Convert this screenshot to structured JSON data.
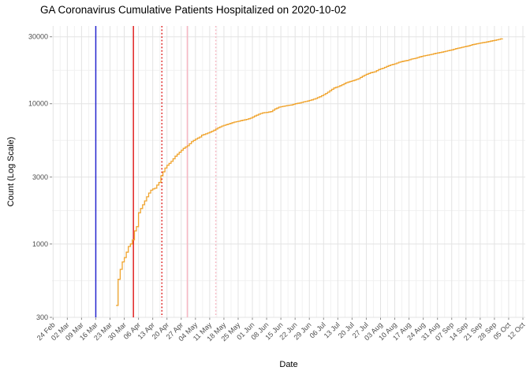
{
  "title": "GA Coronavirus Cumulative Patients Hospitalized on 2020-10-02",
  "chart_data": {
    "type": "line",
    "title": "GA Coronavirus Cumulative Patients Hospitalized on 2020-10-02",
    "xlabel": "Date",
    "ylabel": "Count (Log Scale)",
    "y_scale": "log10",
    "ylim": [
      300,
      35800
    ],
    "x_epoch": "2020-02-24",
    "x_tick_labels": [
      "24 Feb",
      "02 Mar",
      "09 Mar",
      "16 Mar",
      "23 Mar",
      "30 Mar",
      "06 Apr",
      "13 Apr",
      "20 Apr",
      "27 Apr",
      "04 May",
      "11 May",
      "18 May",
      "25 May",
      "01 Jun",
      "08 Jun",
      "15 Jun",
      "22 Jun",
      "29 Jun",
      "06 Jul",
      "13 Jul",
      "20 Jul",
      "27 Jul",
      "03 Aug",
      "10 Aug",
      "17 Aug",
      "24 Aug",
      "31 Aug",
      "07 Sep",
      "14 Sep",
      "21 Sep",
      "28 Sep",
      "05 Oct",
      "12 Oct"
    ],
    "x_tick_day_step": 7,
    "y_ticks": [
      300,
      1000,
      3000,
      10000,
      30000
    ],
    "grid": true,
    "legend": false,
    "colors": {
      "series": "#F0A42E",
      "vline_blue": "#2424CE",
      "vline_red": "#DF2020",
      "vline_pink": "#F7B6C2",
      "grid_major": "#E3E3E3",
      "grid_minor": "#F1F1F1",
      "tick_text": "#4D4D4D",
      "tick_mark": "#888888"
    },
    "vlines": [
      {
        "name": "vline-blue-solid",
        "date": "2020-03-16",
        "day": 21,
        "color": "#2424CE",
        "style": "solid"
      },
      {
        "name": "vline-red-solid",
        "date": "2020-04-03",
        "day": 39.5,
        "color": "#DF2020",
        "style": "solid"
      },
      {
        "name": "vline-red-dotted",
        "date": "2020-04-18",
        "day": 53.5,
        "color": "#DF2020",
        "style": "dotted"
      },
      {
        "name": "vline-pink-solid",
        "date": "2020-04-30",
        "day": 66,
        "color": "#F7B6C2",
        "style": "solid"
      },
      {
        "name": "vline-pink-dotted",
        "date": "2020-05-14",
        "day": 80,
        "color": "#F7B6C2",
        "style": "dotted"
      }
    ],
    "series": [
      {
        "name": "cumulative-hospitalized",
        "color": "#F0A42E",
        "points": [
          [
            31,
            365
          ],
          [
            32,
            560
          ],
          [
            33,
            660
          ],
          [
            34,
            745
          ],
          [
            35,
            800
          ],
          [
            36,
            875
          ],
          [
            37,
            960
          ],
          [
            38,
            1000
          ],
          [
            39,
            1070
          ],
          [
            40,
            1240
          ],
          [
            41,
            1330
          ],
          [
            42,
            1670
          ],
          [
            43,
            1790
          ],
          [
            44,
            1905
          ],
          [
            45,
            2030
          ],
          [
            46,
            2170
          ],
          [
            47,
            2310
          ],
          [
            48,
            2420
          ],
          [
            49,
            2470
          ],
          [
            50,
            2500
          ],
          [
            51,
            2630
          ],
          [
            52,
            2750
          ],
          [
            53,
            3060
          ],
          [
            54,
            3270
          ],
          [
            55,
            3480
          ],
          [
            56,
            3640
          ],
          [
            58,
            3880
          ],
          [
            59,
            4050
          ],
          [
            60,
            4230
          ],
          [
            62,
            4510
          ],
          [
            64,
            4810
          ],
          [
            66,
            5020
          ],
          [
            68,
            5360
          ],
          [
            70,
            5600
          ],
          [
            72,
            5790
          ],
          [
            73,
            5970
          ],
          [
            75,
            6100
          ],
          [
            78,
            6360
          ],
          [
            80,
            6600
          ],
          [
            81,
            6730
          ],
          [
            83,
            6940
          ],
          [
            85,
            7090
          ],
          [
            87,
            7240
          ],
          [
            89,
            7400
          ],
          [
            91,
            7500
          ],
          [
            93,
            7620
          ],
          [
            95,
            7730
          ],
          [
            97,
            7890
          ],
          [
            99,
            8170
          ],
          [
            101,
            8420
          ],
          [
            103,
            8610
          ],
          [
            105,
            8670
          ],
          [
            107,
            8790
          ],
          [
            109,
            9180
          ],
          [
            111,
            9460
          ],
          [
            113,
            9580
          ],
          [
            115,
            9710
          ],
          [
            117,
            9800
          ],
          [
            119,
            10000
          ],
          [
            121,
            10120
          ],
          [
            123,
            10300
          ],
          [
            125,
            10450
          ],
          [
            127,
            10660
          ],
          [
            129,
            10890
          ],
          [
            131,
            11220
          ],
          [
            133,
            11610
          ],
          [
            135,
            12100
          ],
          [
            138,
            12950
          ],
          [
            140,
            13240
          ],
          [
            142,
            13650
          ],
          [
            144,
            14130
          ],
          [
            146,
            14420
          ],
          [
            148,
            14720
          ],
          [
            150,
            15070
          ],
          [
            152,
            15700
          ],
          [
            154,
            16220
          ],
          [
            156,
            16630
          ],
          [
            158,
            16900
          ],
          [
            160,
            17530
          ],
          [
            162,
            17910
          ],
          [
            164,
            18450
          ],
          [
            166,
            18920
          ],
          [
            168,
            19260
          ],
          [
            170,
            19770
          ],
          [
            172,
            20100
          ],
          [
            174,
            20360
          ],
          [
            176,
            20800
          ],
          [
            178,
            21090
          ],
          [
            180,
            21540
          ],
          [
            182,
            21920
          ],
          [
            184,
            22190
          ],
          [
            186,
            22490
          ],
          [
            188,
            22870
          ],
          [
            190,
            23170
          ],
          [
            192,
            23490
          ],
          [
            194,
            23880
          ],
          [
            196,
            24210
          ],
          [
            198,
            24720
          ],
          [
            200,
            25060
          ],
          [
            202,
            25470
          ],
          [
            204,
            25820
          ],
          [
            206,
            26360
          ],
          [
            209,
            26920
          ],
          [
            213,
            27540
          ],
          [
            216,
            28120
          ],
          [
            218,
            28510
          ],
          [
            220,
            28970
          ],
          [
            221,
            29100
          ]
        ]
      }
    ]
  }
}
